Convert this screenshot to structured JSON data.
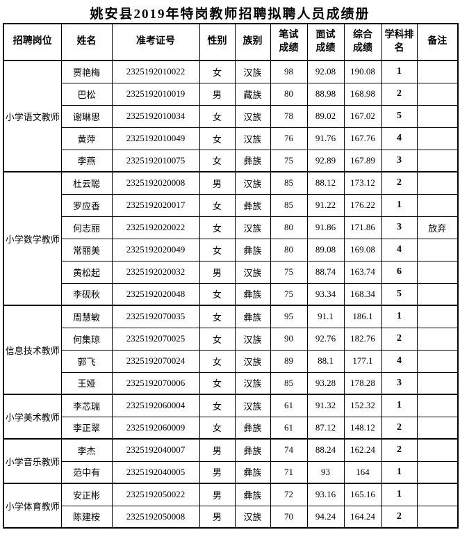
{
  "title": "姚安县2019年特岗教师招聘拟聘人员成绩册",
  "table": {
    "headers": [
      {
        "key": "position",
        "label": "招聘岗位"
      },
      {
        "key": "name",
        "label": "姓名"
      },
      {
        "key": "ticket",
        "label": "准考证号"
      },
      {
        "key": "gender",
        "label": "性别"
      },
      {
        "key": "ethnic",
        "label": "族别"
      },
      {
        "key": "written",
        "label": "笔试\n成绩"
      },
      {
        "key": "interview",
        "label": "面试\n成绩"
      },
      {
        "key": "composite",
        "label": "综合\n成绩"
      },
      {
        "key": "rank",
        "label": "学科排\n名"
      },
      {
        "key": "remark",
        "label": "备注"
      }
    ],
    "groups": [
      {
        "position": "小学语文教师",
        "rows": [
          {
            "name": "贾艳梅",
            "ticket": "2325192010022",
            "gender": "女",
            "ethnic": "汉族",
            "written": "98",
            "interview": "92.08",
            "composite": "190.08",
            "rank": "1",
            "remark": ""
          },
          {
            "name": "巴松",
            "ticket": "2325192010019",
            "gender": "男",
            "ethnic": "藏族",
            "written": "80",
            "interview": "88.98",
            "composite": "168.98",
            "rank": "2",
            "remark": ""
          },
          {
            "name": "谢琳思",
            "ticket": "2325192010034",
            "gender": "女",
            "ethnic": "汉族",
            "written": "78",
            "interview": "89.02",
            "composite": "167.02",
            "rank": "5",
            "remark": ""
          },
          {
            "name": "黄萍",
            "ticket": "2325192010049",
            "gender": "女",
            "ethnic": "汉族",
            "written": "76",
            "interview": "91.76",
            "composite": "167.76",
            "rank": "4",
            "remark": ""
          },
          {
            "name": "李燕",
            "ticket": "2325192010075",
            "gender": "女",
            "ethnic": "彝族",
            "written": "75",
            "interview": "92.89",
            "composite": "167.89",
            "rank": "3",
            "remark": ""
          }
        ]
      },
      {
        "position": "小学数学教师",
        "rows": [
          {
            "name": "杜云聪",
            "ticket": "2325192020008",
            "gender": "男",
            "ethnic": "汉族",
            "written": "85",
            "interview": "88.12",
            "composite": "173.12",
            "rank": "2",
            "remark": ""
          },
          {
            "name": "罗应香",
            "ticket": "2325192020017",
            "gender": "女",
            "ethnic": "彝族",
            "written": "85",
            "interview": "91.22",
            "composite": "176.22",
            "rank": "1",
            "remark": ""
          },
          {
            "name": "何志丽",
            "ticket": "2325192020022",
            "gender": "女",
            "ethnic": "汉族",
            "written": "80",
            "interview": "91.86",
            "composite": "171.86",
            "rank": "3",
            "remark": "放弃"
          },
          {
            "name": "常丽美",
            "ticket": "2325192020049",
            "gender": "女",
            "ethnic": "彝族",
            "written": "80",
            "interview": "89.08",
            "composite": "169.08",
            "rank": "4",
            "remark": ""
          },
          {
            "name": "黄松起",
            "ticket": "2325192020032",
            "gender": "男",
            "ethnic": "汉族",
            "written": "75",
            "interview": "88.74",
            "composite": "163.74",
            "rank": "6",
            "remark": ""
          },
          {
            "name": "李砚秋",
            "ticket": "2325192020048",
            "gender": "女",
            "ethnic": "彝族",
            "written": "75",
            "interview": "93.34",
            "composite": "168.34",
            "rank": "5",
            "remark": ""
          }
        ]
      },
      {
        "position": "信息技术教师",
        "rows": [
          {
            "name": "周慧敏",
            "ticket": "2325192070035",
            "gender": "女",
            "ethnic": "彝族",
            "written": "95",
            "interview": "91.1",
            "composite": "186.1",
            "rank": "1",
            "remark": ""
          },
          {
            "name": "何集琼",
            "ticket": "2325192070025",
            "gender": "女",
            "ethnic": "汉族",
            "written": "90",
            "interview": "92.76",
            "composite": "182.76",
            "rank": "2",
            "remark": ""
          },
          {
            "name": "郭飞",
            "ticket": "2325192070024",
            "gender": "女",
            "ethnic": "汉族",
            "written": "89",
            "interview": "88.1",
            "composite": "177.1",
            "rank": "4",
            "remark": ""
          },
          {
            "name": "王娅",
            "ticket": "2325192070006",
            "gender": "女",
            "ethnic": "汉族",
            "written": "85",
            "interview": "93.28",
            "composite": "178.28",
            "rank": "3",
            "remark": ""
          }
        ]
      },
      {
        "position": "小学美术教师",
        "rows": [
          {
            "name": "李芯瑞",
            "ticket": "2325192060004",
            "gender": "女",
            "ethnic": "汉族",
            "written": "61",
            "interview": "91.32",
            "composite": "152.32",
            "rank": "1",
            "remark": ""
          },
          {
            "name": "李正翠",
            "ticket": "2325192060009",
            "gender": "女",
            "ethnic": "彝族",
            "written": "61",
            "interview": "87.12",
            "composite": "148.12",
            "rank": "2",
            "remark": ""
          }
        ]
      },
      {
        "position": "小学音乐教师",
        "rows": [
          {
            "name": "李杰",
            "ticket": "2325192040007",
            "gender": "男",
            "ethnic": "彝族",
            "written": "74",
            "interview": "88.24",
            "composite": "162.24",
            "rank": "2",
            "remark": ""
          },
          {
            "name": "范中有",
            "ticket": "2325192040005",
            "gender": "男",
            "ethnic": "彝族",
            "written": "71",
            "interview": "93",
            "composite": "164",
            "rank": "1",
            "remark": ""
          }
        ]
      },
      {
        "position": "小学体育教师",
        "rows": [
          {
            "name": "安正彬",
            "ticket": "2325192050022",
            "gender": "男",
            "ethnic": "彝族",
            "written": "72",
            "interview": "93.16",
            "composite": "165.16",
            "rank": "1",
            "remark": ""
          },
          {
            "name": "陈建桉",
            "ticket": "2325192050008",
            "gender": "男",
            "ethnic": "汉族",
            "written": "70",
            "interview": "94.24",
            "composite": "164.24",
            "rank": "2",
            "remark": ""
          }
        ]
      }
    ]
  }
}
